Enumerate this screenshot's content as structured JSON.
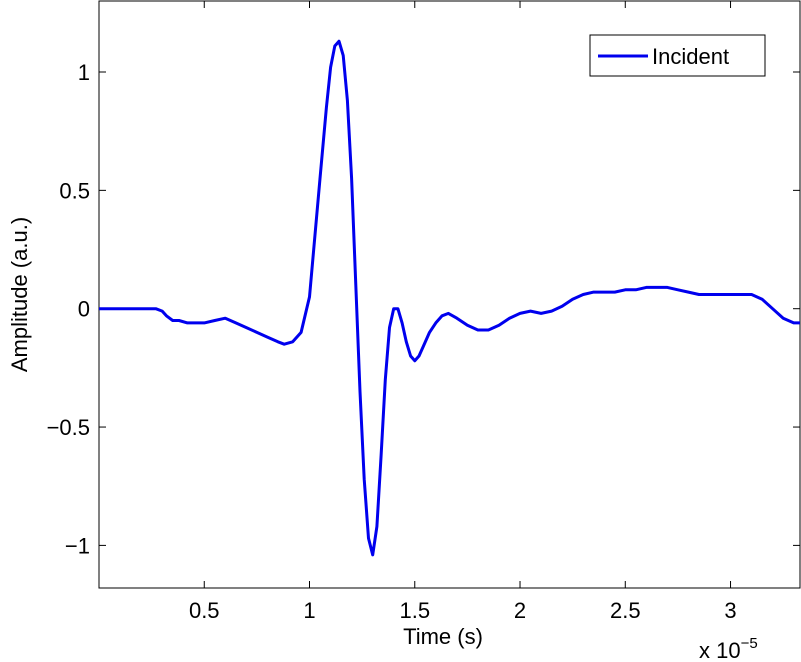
{
  "chart_data": {
    "type": "line",
    "xlabel": "Time (s)",
    "ylabel": "Amplitude (a.u.)",
    "x_multiplier_label": "x 10",
    "x_multiplier_exponent": "−5",
    "xlim": [
      0.0,
      3.33
    ],
    "ylim": [
      -1.18,
      1.3
    ],
    "x_ticks": [
      0.5,
      1,
      1.5,
      2,
      2.5,
      3
    ],
    "x_tick_labels": [
      "0.5",
      "1",
      "1.5",
      "2",
      "2.5",
      "3"
    ],
    "y_ticks": [
      -1,
      -0.5,
      0,
      0.5,
      1
    ],
    "y_tick_labels": [
      "−1",
      "−0.5",
      "0",
      "0.5",
      "1"
    ],
    "grid": false,
    "legend_position": "top-right",
    "series": [
      {
        "name": "Incident",
        "color": "#0000ee",
        "x": [
          0.0,
          0.27,
          0.3,
          0.32,
          0.35,
          0.38,
          0.42,
          0.5,
          0.55,
          0.6,
          0.65,
          0.7,
          0.75,
          0.8,
          0.85,
          0.88,
          0.92,
          0.96,
          1.0,
          1.02,
          1.05,
          1.08,
          1.1,
          1.12,
          1.14,
          1.16,
          1.18,
          1.2,
          1.22,
          1.24,
          1.26,
          1.28,
          1.3,
          1.32,
          1.34,
          1.36,
          1.38,
          1.4,
          1.42,
          1.44,
          1.46,
          1.48,
          1.5,
          1.52,
          1.54,
          1.57,
          1.6,
          1.63,
          1.66,
          1.7,
          1.75,
          1.8,
          1.85,
          1.9,
          1.95,
          2.0,
          2.05,
          2.1,
          2.15,
          2.2,
          2.25,
          2.3,
          2.35,
          2.4,
          2.45,
          2.5,
          2.55,
          2.6,
          2.65,
          2.7,
          2.75,
          2.8,
          2.85,
          2.9,
          2.95,
          3.0,
          3.05,
          3.1,
          3.15,
          3.2,
          3.25,
          3.3,
          3.33
        ],
        "y": [
          0.0,
          0.0,
          -0.01,
          -0.03,
          -0.05,
          -0.05,
          -0.06,
          -0.06,
          -0.05,
          -0.04,
          -0.06,
          -0.08,
          -0.1,
          -0.12,
          -0.14,
          -0.15,
          -0.14,
          -0.1,
          0.05,
          0.25,
          0.55,
          0.85,
          1.02,
          1.11,
          1.13,
          1.07,
          0.88,
          0.55,
          0.1,
          -0.35,
          -0.72,
          -0.97,
          -1.04,
          -0.92,
          -0.62,
          -0.3,
          -0.08,
          0.0,
          0.0,
          -0.06,
          -0.14,
          -0.2,
          -0.22,
          -0.2,
          -0.16,
          -0.1,
          -0.06,
          -0.03,
          -0.02,
          -0.04,
          -0.07,
          -0.09,
          -0.09,
          -0.07,
          -0.04,
          -0.02,
          -0.01,
          -0.02,
          -0.01,
          0.01,
          0.04,
          0.06,
          0.07,
          0.07,
          0.07,
          0.08,
          0.08,
          0.09,
          0.09,
          0.09,
          0.08,
          0.07,
          0.06,
          0.06,
          0.06,
          0.06,
          0.06,
          0.06,
          0.04,
          0.0,
          -0.04,
          -0.06,
          -0.06
        ]
      }
    ]
  }
}
